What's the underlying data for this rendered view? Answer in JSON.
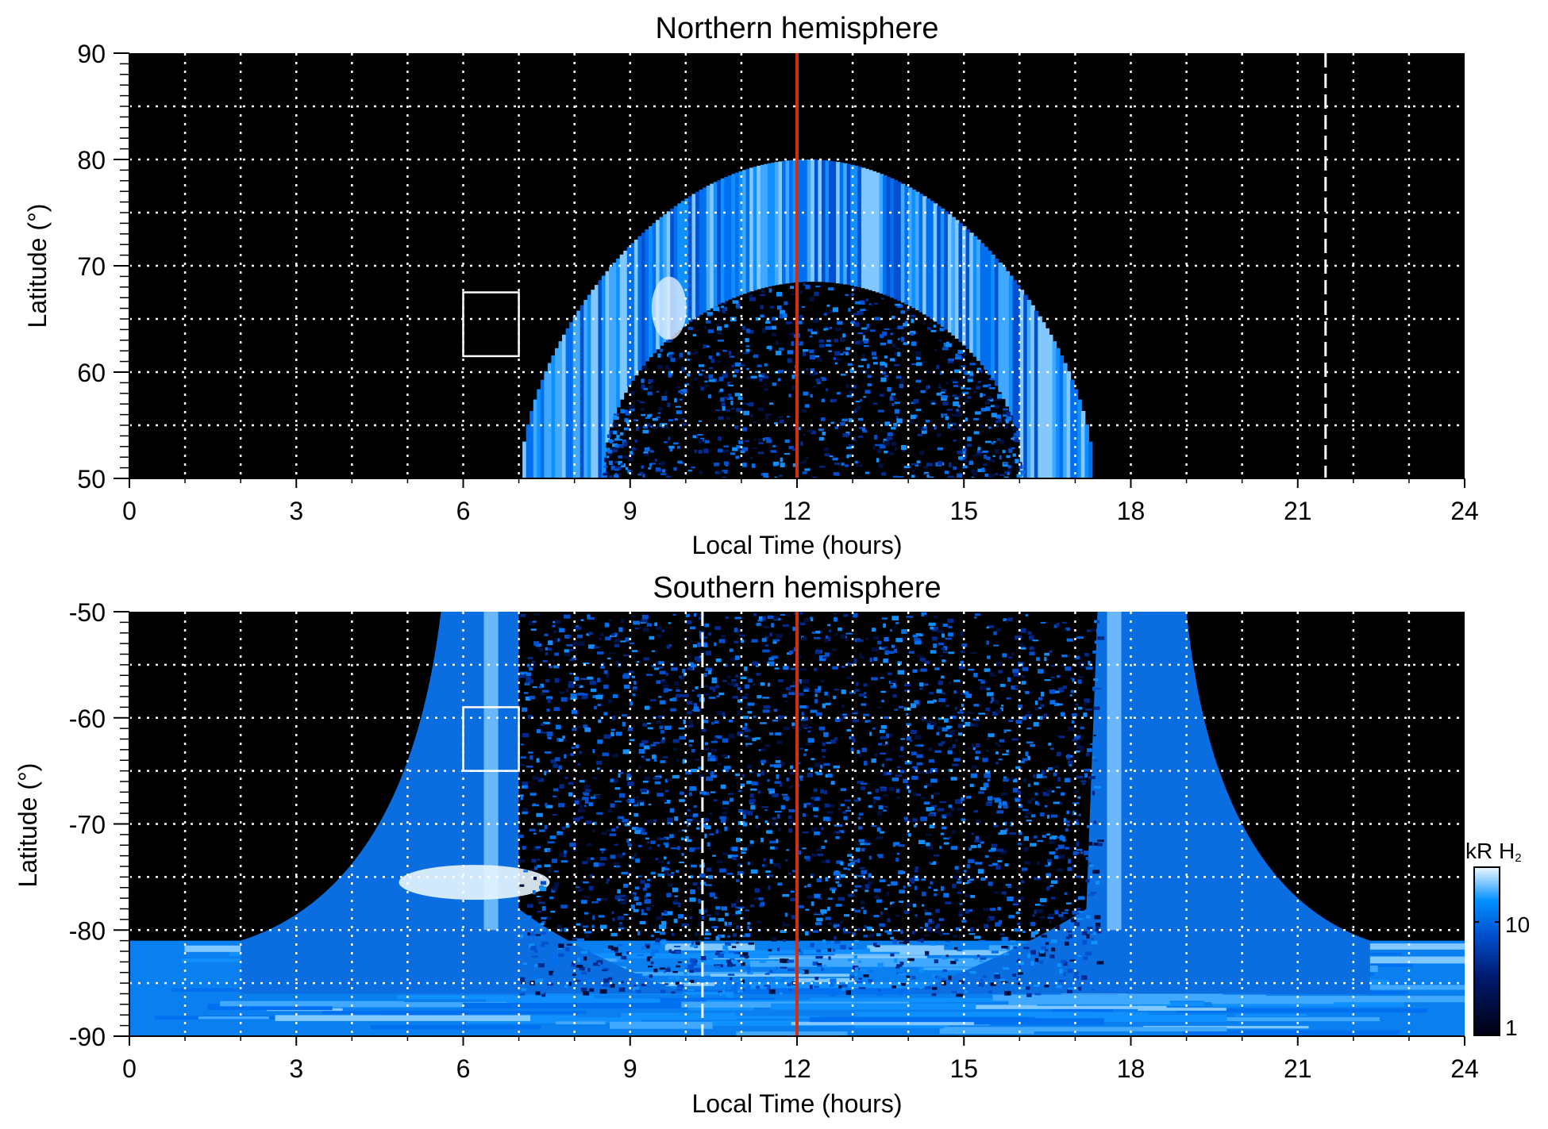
{
  "chart_data": [
    {
      "type": "heatmap",
      "title": "Northern hemisphere",
      "xlabel": "Local Time (hours)",
      "ylabel": "Latitude (°)",
      "xlim": [
        0,
        24
      ],
      "ylim": [
        50,
        90
      ],
      "xticks": [
        "0",
        "3",
        "6",
        "9",
        "12",
        "15",
        "18",
        "21",
        "24"
      ],
      "yticks": [
        "90",
        "80",
        "70",
        "60",
        "50"
      ],
      "grid": true,
      "noon_line_lt": 12,
      "dashed_line_lt": 21.5,
      "box": {
        "lt": [
          6,
          7
        ],
        "lat": [
          61.5,
          67.5
        ]
      },
      "oval": {
        "outer_start_lt": 7,
        "outer_end_lt": 17.3,
        "outer_peak_lat": 80,
        "inner_start_lt": 8.5,
        "inner_end_lt": 16,
        "inner_peak_lat": 68.5
      }
    },
    {
      "type": "heatmap",
      "title": "Southern hemisphere",
      "xlabel": "Local Time (hours)",
      "ylabel": "Latitude (°)",
      "xlim": [
        0,
        24
      ],
      "ylim": [
        -90,
        -50
      ],
      "xticks": [
        "0",
        "3",
        "6",
        "9",
        "12",
        "15",
        "18",
        "21",
        "24"
      ],
      "yticks": [
        "-50",
        "-60",
        "-70",
        "-80",
        "-90"
      ],
      "grid": true,
      "noon_line_lt": 12,
      "dashed_line_lt": 10.3,
      "box": {
        "lt": [
          6,
          7
        ],
        "lat": [
          -65,
          -59
        ]
      },
      "bright_streaks_lt": [
        6.5,
        17.7
      ]
    }
  ],
  "colorbar": {
    "label": "kR H",
    "label_sub": "2",
    "ticks": [
      "10",
      "1"
    ],
    "range": [
      1,
      30
    ],
    "scale": "log"
  },
  "colors": {
    "background": "#000000",
    "noon_line": "#d0300f",
    "low": "#000010",
    "mid": "#0050d0",
    "high": "#0090ff",
    "top": "#e8f4ff"
  }
}
